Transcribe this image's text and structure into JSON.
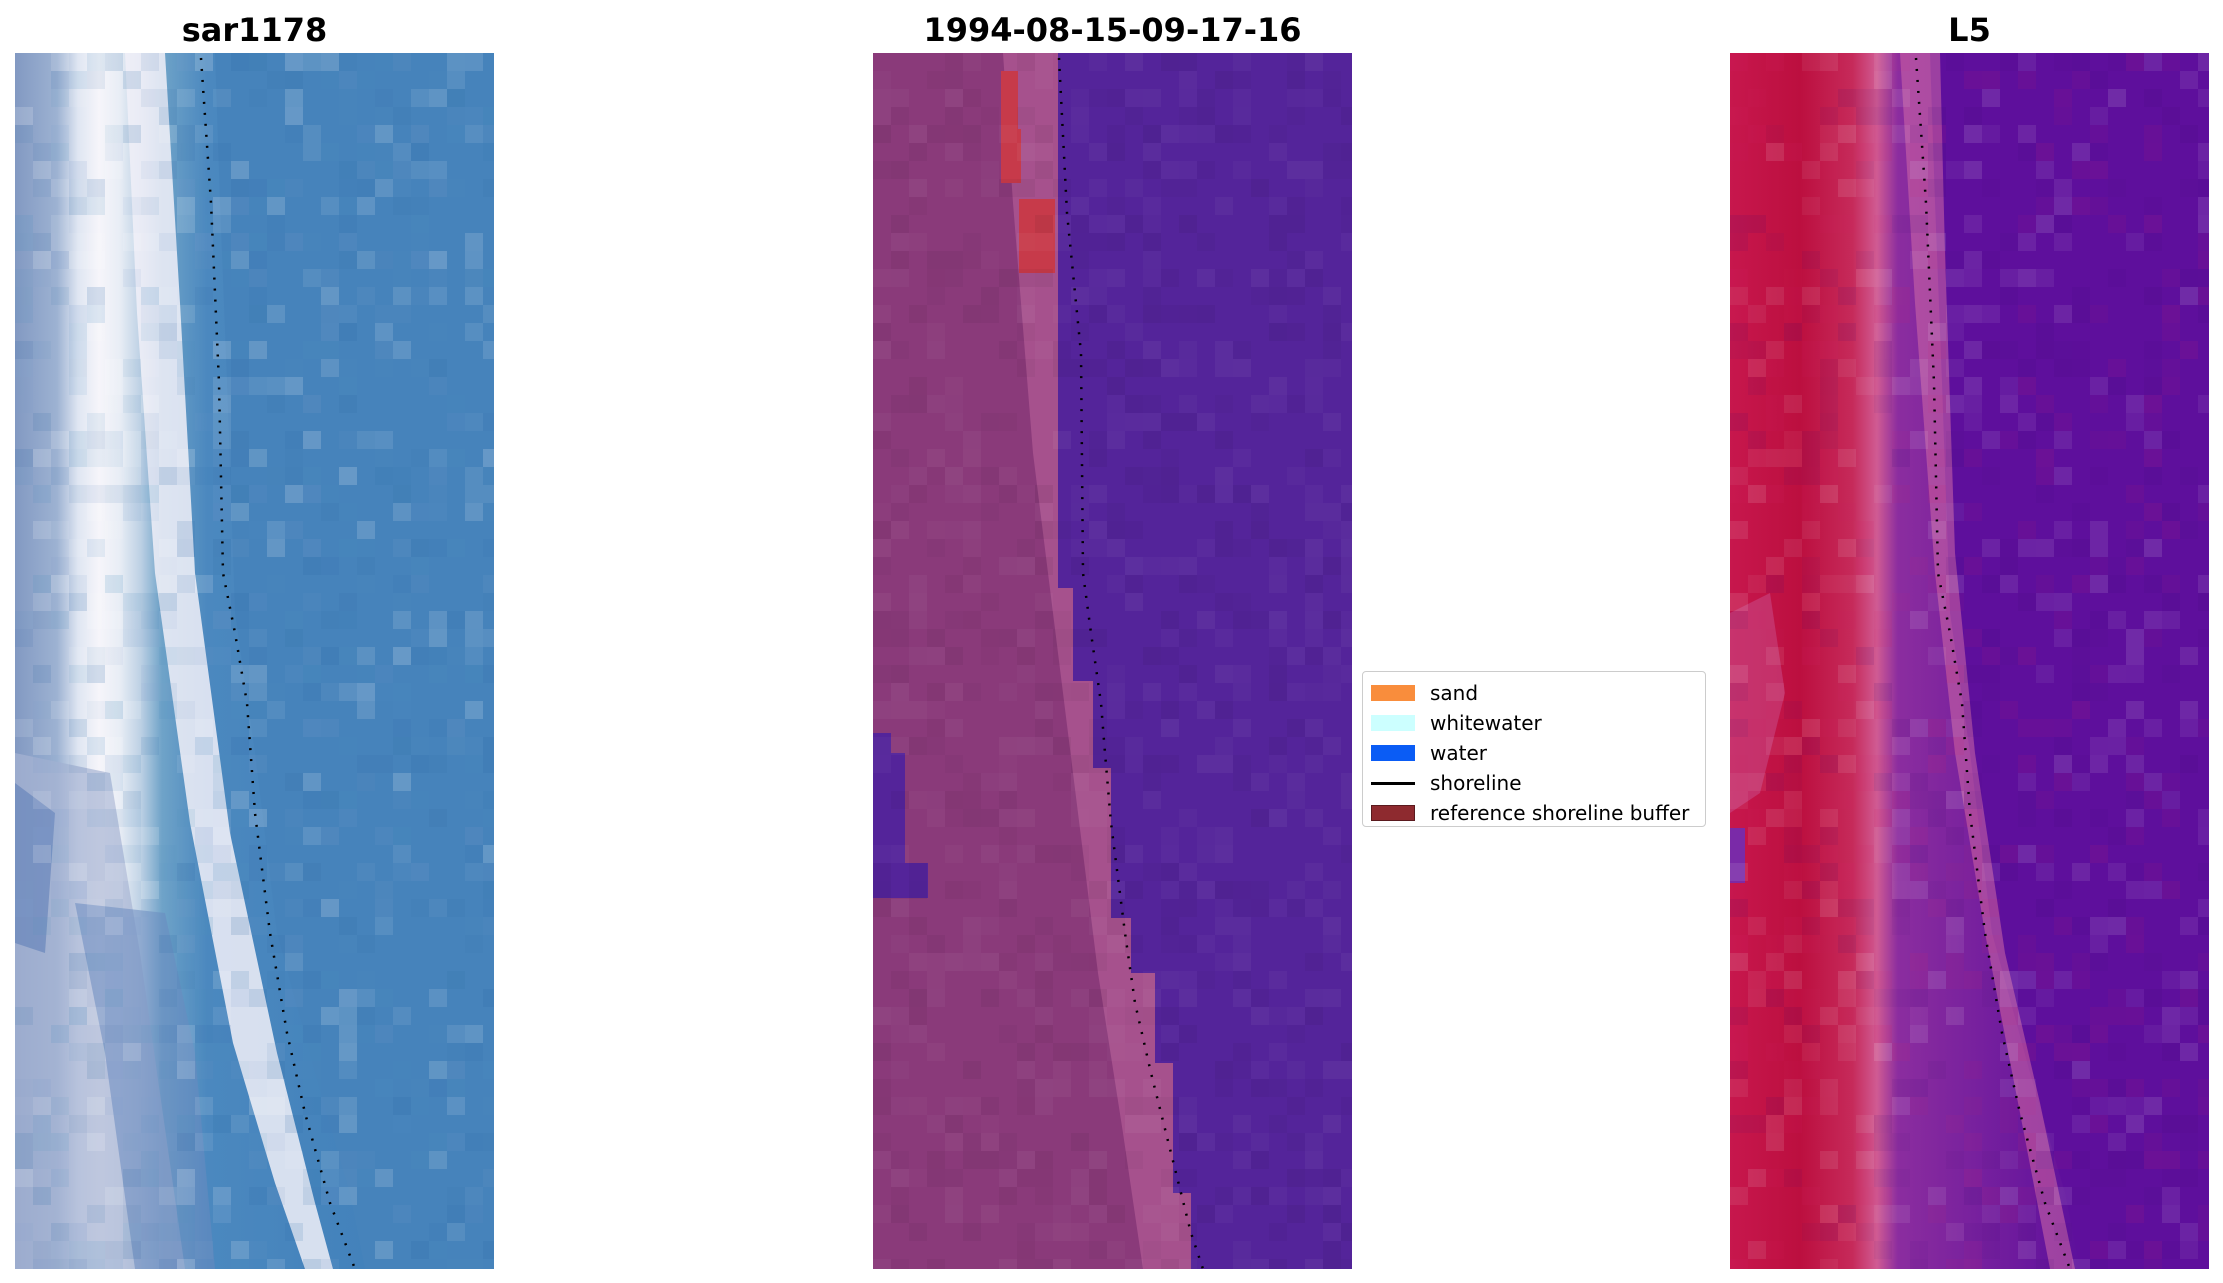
{
  "panels": [
    {
      "title": "sar1178"
    },
    {
      "title": "1994-08-15-09-17-16"
    },
    {
      "title": "L5"
    }
  ],
  "legend": {
    "items": [
      {
        "label": "sand",
        "color": "#f98d3c",
        "kind": "patch"
      },
      {
        "label": "whitewater",
        "color": "#ccffff",
        "kind": "patch"
      },
      {
        "label": "water",
        "color": "#0a5cf5",
        "kind": "patch"
      },
      {
        "label": "shoreline",
        "color": "#000000",
        "kind": "line"
      },
      {
        "label": "reference shoreline buffer",
        "color": "#8e2a2f",
        "kind": "patch"
      }
    ]
  },
  "colors": {
    "rgb_water": "#4683bb",
    "rgb_surf": "#f2f1f8",
    "class_land": "#8a3a7a",
    "class_water": "#54249a",
    "class_buffer": "#c73a4a",
    "swir_land": "#c41443",
    "swir_water": "#5e0f9c",
    "shoreline": "#000000"
  }
}
